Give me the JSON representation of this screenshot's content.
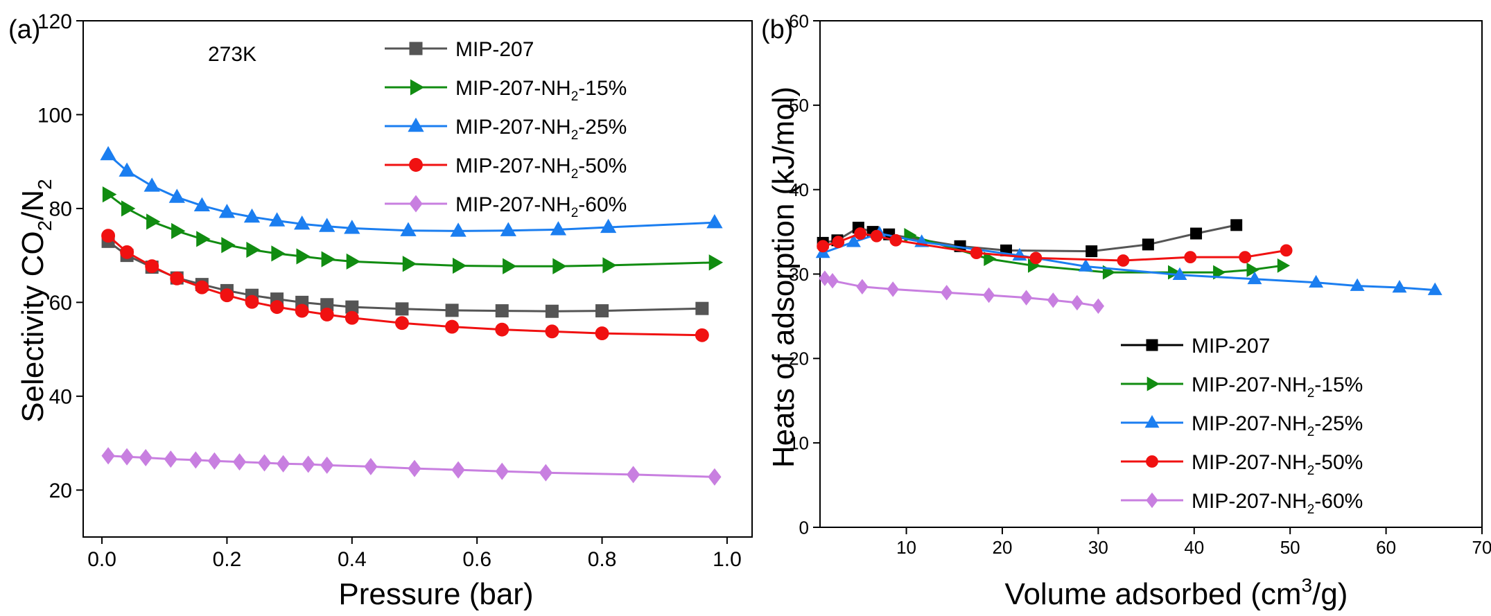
{
  "chart_data": [
    {
      "panel_label": "(a)",
      "type": "line",
      "annotation": "273K",
      "xlabel": "Pressure (bar)",
      "ylabel": {
        "pre": "Selectivity CO",
        "sub1": "2",
        "mid": "/N",
        "sub2": "2"
      },
      "xlim": [
        -0.03,
        1.04
      ],
      "ylim": [
        10,
        120
      ],
      "xticks": [
        0.0,
        0.2,
        0.4,
        0.6,
        0.8,
        1.0
      ],
      "xtick_labels": [
        "0.0",
        "0.2",
        "0.4",
        "0.6",
        "0.8",
        "1.0"
      ],
      "yticks": [
        20,
        40,
        60,
        80,
        100,
        120
      ],
      "ytick_labels": [
        "20",
        "40",
        "60",
        "80",
        "100",
        "120"
      ],
      "legend_position": "top-center",
      "series": [
        {
          "name": "MIP-207",
          "label_pre": "MIP-207",
          "label_sub": "",
          "label_post": "",
          "color": "#555555",
          "marker": "square",
          "x": [
            0.01,
            0.04,
            0.08,
            0.12,
            0.16,
            0.2,
            0.24,
            0.28,
            0.32,
            0.36,
            0.4,
            0.48,
            0.56,
            0.64,
            0.72,
            0.8,
            0.96
          ],
          "y": [
            73,
            70,
            67.5,
            65.2,
            63.8,
            62.5,
            61.5,
            60.7,
            60,
            59.5,
            59,
            58.6,
            58.3,
            58.2,
            58.1,
            58.2,
            58.7
          ]
        },
        {
          "name": "MIP-207-NH2-15%",
          "label_pre": "MIP-207-NH",
          "label_sub": "2",
          "label_post": "-15%",
          "color": "#118c11",
          "marker": "triangle-right",
          "x": [
            0.01,
            0.04,
            0.08,
            0.12,
            0.16,
            0.2,
            0.24,
            0.28,
            0.32,
            0.36,
            0.4,
            0.49,
            0.57,
            0.65,
            0.73,
            0.81,
            0.98
          ],
          "y": [
            83,
            80,
            77.2,
            75.2,
            73.5,
            72.2,
            71.2,
            70.4,
            69.8,
            69.2,
            68.7,
            68.2,
            67.8,
            67.7,
            67.7,
            67.9,
            68.5
          ]
        },
        {
          "name": "MIP-207-NH2-25%",
          "label_pre": "MIP-207-NH",
          "label_sub": "2",
          "label_post": "-25%",
          "color": "#1b7ef0",
          "marker": "triangle-up",
          "x": [
            0.01,
            0.04,
            0.08,
            0.12,
            0.16,
            0.2,
            0.24,
            0.28,
            0.32,
            0.36,
            0.4,
            0.49,
            0.57,
            0.65,
            0.73,
            0.81,
            0.98
          ],
          "y": [
            91.5,
            88,
            84.8,
            82.4,
            80.6,
            79.2,
            78.2,
            77.4,
            76.7,
            76.2,
            75.8,
            75.3,
            75.2,
            75.3,
            75.5,
            76,
            77
          ]
        },
        {
          "name": "MIP-207-NH2-50%",
          "label_pre": "MIP-207-NH",
          "label_sub": "2",
          "label_post": "-50%",
          "color": "#f01111",
          "marker": "circle",
          "x": [
            0.01,
            0.04,
            0.08,
            0.12,
            0.16,
            0.2,
            0.24,
            0.28,
            0.32,
            0.36,
            0.4,
            0.48,
            0.56,
            0.64,
            0.72,
            0.8,
            0.96
          ],
          "y": [
            74.2,
            70.7,
            67.7,
            65.1,
            63.2,
            61.5,
            60.1,
            59,
            58.2,
            57.4,
            56.7,
            55.6,
            54.8,
            54.2,
            53.8,
            53.4,
            53
          ]
        },
        {
          "name": "MIP-207-NH2-60%",
          "label_pre": "MIP-207-NH",
          "label_sub": "2",
          "label_post": "-60%",
          "color": "#c87fe0",
          "marker": "diamond",
          "x": [
            0.01,
            0.04,
            0.07,
            0.11,
            0.15,
            0.18,
            0.22,
            0.26,
            0.29,
            0.33,
            0.36,
            0.43,
            0.5,
            0.57,
            0.64,
            0.71,
            0.85,
            0.98
          ],
          "y": [
            27.3,
            27.1,
            26.9,
            26.6,
            26.4,
            26.2,
            26,
            25.8,
            25.6,
            25.5,
            25.3,
            25,
            24.6,
            24.3,
            24,
            23.7,
            23.3,
            22.8
          ]
        }
      ]
    },
    {
      "panel_label": "(b)",
      "type": "line",
      "xlabel": {
        "pre": "Volume adsorbed (cm",
        "sup": "3",
        "post": "/g)"
      },
      "ylabel": "Heats of adsorption  (kJ/mol)",
      "xlim": [
        1,
        70
      ],
      "ylim": [
        0,
        60
      ],
      "xticks": [
        10,
        20,
        30,
        40,
        50,
        60,
        70
      ],
      "xtick_labels": [
        "10",
        "20",
        "30",
        "40",
        "50",
        "60",
        "70"
      ],
      "yticks": [
        0,
        10,
        20,
        30,
        40,
        50,
        60
      ],
      "ytick_labels": [
        "0",
        "10",
        "20",
        "30",
        "40",
        "50",
        "60"
      ],
      "legend_position": "bottom-center",
      "series": [
        {
          "name": "MIP-207",
          "label_pre": "MIP-207",
          "label_sub": "",
          "label_post": "",
          "color": "#555555",
          "legend_line": "#000000",
          "marker": "square",
          "marker_color": "#000000",
          "x": [
            1.3,
            2.8,
            5,
            6.5,
            8.2,
            15.6,
            20.4,
            29.3,
            35.2,
            40.2,
            44.4
          ],
          "y": [
            33.7,
            34,
            35.5,
            35,
            34.7,
            33.3,
            32.8,
            32.7,
            33.5,
            34.8,
            35.8
          ]
        },
        {
          "name": "MIP-207-NH2-15%",
          "label_pre": "MIP-207-NH",
          "label_sub": "2",
          "label_post": "-15%",
          "color": "#118c11",
          "legend_line": "#118c11",
          "marker": "triangle-right",
          "marker_color": "#118c11",
          "x": [
            10.3,
            18.6,
            23.2,
            31,
            37.8,
            42.5,
            46,
            49.2
          ],
          "y": [
            34.6,
            31.8,
            31,
            30.2,
            30.2,
            30.2,
            30.5,
            31
          ]
        },
        {
          "name": "MIP-207-NH2-25%",
          "label_pre": "MIP-207-NH",
          "label_sub": "2",
          "label_post": "-25%",
          "color": "#1b7ef0",
          "legend_line": "#1b7ef0",
          "marker": "triangle-up",
          "marker_color": "#1b7ef0",
          "x": [
            1.3,
            4.5,
            7.2,
            11.6,
            21.8,
            28.7,
            38.5,
            46.3,
            52.7,
            57,
            61.4,
            65.1
          ],
          "y": [
            32.5,
            33.8,
            34.8,
            33.8,
            32.2,
            30.9,
            29.9,
            29.4,
            29,
            28.6,
            28.4,
            28.1
          ]
        },
        {
          "name": "MIP-207-NH2-50%",
          "label_pre": "MIP-207-NH",
          "label_sub": "2",
          "label_post": "-50%",
          "color": "#f01111",
          "legend_line": "#f01111",
          "marker": "circle",
          "marker_color": "#f01111",
          "x": [
            1.3,
            2.9,
            5.2,
            6.9,
            8.9,
            17.3,
            23.5,
            32.6,
            39.6,
            45.3,
            49.6
          ],
          "y": [
            33.3,
            33.8,
            34.8,
            34.5,
            34,
            32.5,
            31.9,
            31.6,
            32,
            32,
            32.8
          ]
        },
        {
          "name": "MIP-207-NH2-60%",
          "label_pre": "MIP-207-NH",
          "label_sub": "2",
          "label_post": "-60%",
          "color": "#c87fe0",
          "legend_line": "#c87fe0",
          "marker": "diamond",
          "marker_color": "#c87fe0",
          "x": [
            1.5,
            2.3,
            5.4,
            8.6,
            14.2,
            18.6,
            22.5,
            25.3,
            27.8,
            30
          ],
          "y": [
            29.5,
            29.2,
            28.5,
            28.2,
            27.8,
            27.5,
            27.2,
            26.9,
            26.6,
            26.2
          ]
        }
      ]
    }
  ]
}
